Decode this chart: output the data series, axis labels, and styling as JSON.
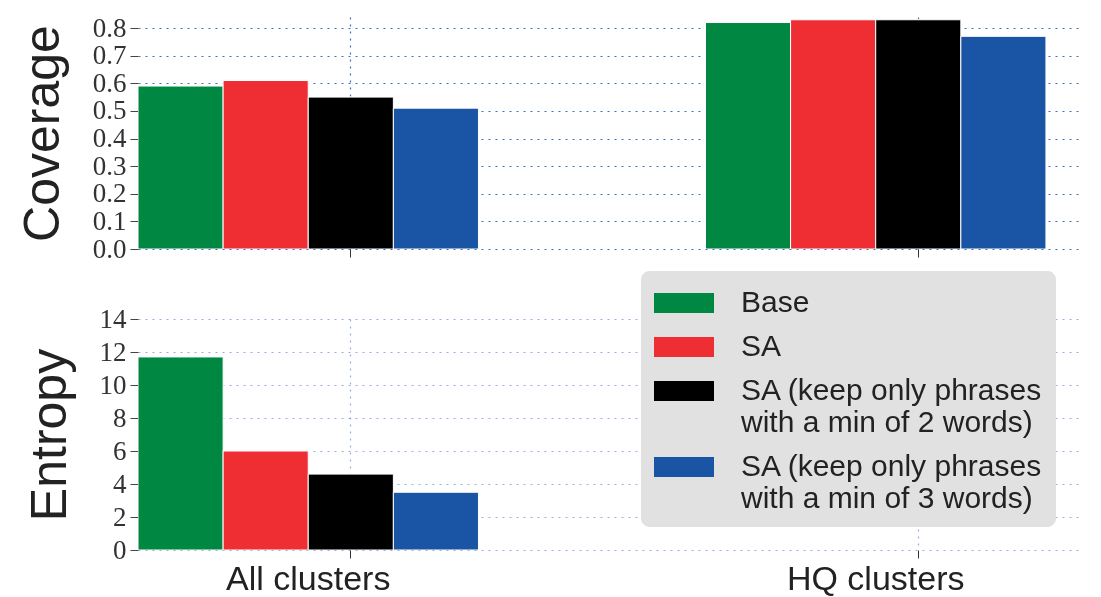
{
  "chart_data": [
    {
      "type": "bar",
      "ylabel": "Coverage",
      "categories": [
        "All clusters",
        "HQ clusters"
      ],
      "series": [
        {
          "color": "#008842",
          "values": [
            0.59,
            0.82
          ]
        },
        {
          "color": "#ee2e33",
          "values": [
            0.61,
            0.83
          ]
        },
        {
          "color": "#000000",
          "values": [
            0.55,
            0.83
          ]
        },
        {
          "color": "#1a54a4",
          "values": [
            0.51,
            0.77
          ]
        }
      ],
      "ylim": [
        0,
        0.84
      ],
      "yticks": [
        {
          "value": 0,
          "label": "0.0"
        },
        0.1,
        0.2,
        0.3,
        0.4,
        0.5,
        0.6,
        0.7,
        0.8
      ],
      "grid": true,
      "tick_labels": "y"
    },
    {
      "type": "bar",
      "ylabel": "Entropy",
      "categories": [
        "All clusters",
        "HQ clusters"
      ],
      "series": [
        {
          "name": "Base",
          "color": "#008842",
          "values": [
            11.7,
            null
          ]
        },
        {
          "name": "SA",
          "color": "#ee2e33",
          "values": [
            6.0,
            null
          ]
        },
        {
          "name": "SA (keep only phrases with a min of 2 words)",
          "color": "#000000",
          "values": [
            4.6,
            null
          ]
        },
        {
          "name": "SA (keep only phrases with a min of 3 words)",
          "color": "#1a54a4",
          "values": [
            3.5,
            null
          ]
        }
      ],
      "ylim": [
        0,
        14
      ],
      "yticks": [
        0,
        2,
        4,
        6,
        8,
        10,
        12,
        14
      ],
      "grid": true,
      "legend": "top right"
    }
  ]
}
